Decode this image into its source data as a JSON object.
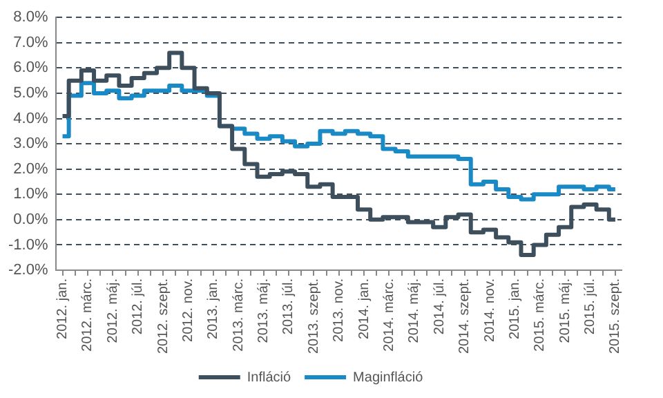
{
  "chart_data": {
    "type": "step",
    "categories": [
      "2012. jan.",
      null,
      "2012. márc.",
      null,
      "2012. máj.",
      null,
      "2012. júl.",
      null,
      "2012. szept.",
      null,
      "2012. nov.",
      null,
      "2013. jan.",
      null,
      "2013. márc.",
      null,
      "2013. máj.",
      null,
      "2013. júl.",
      null,
      "2013. szept.",
      null,
      "2013. nov.",
      null,
      "2014. jan.",
      null,
      "2014. márc.",
      null,
      "2014. máj.",
      null,
      "2014. júl.",
      null,
      "2014. szept.",
      null,
      "2014. nov.",
      null,
      "2015. jan.",
      null,
      "2015. márc.",
      null,
      "2015. máj.",
      null,
      "2015. júl.",
      null,
      "2015. szept."
    ],
    "series": [
      {
        "name": "Infláció",
        "color": "#3d4f5c",
        "values": [
          4.1,
          5.5,
          5.9,
          5.5,
          5.7,
          5.3,
          5.6,
          5.8,
          6.0,
          6.6,
          6.0,
          5.2,
          5.0,
          3.7,
          2.8,
          2.2,
          1.7,
          1.8,
          1.9,
          1.8,
          1.3,
          1.4,
          0.9,
          0.9,
          0.4,
          0.0,
          0.1,
          0.1,
          -0.1,
          -0.1,
          -0.3,
          0.1,
          0.2,
          -0.5,
          -0.4,
          -0.7,
          -0.9,
          -1.4,
          -1.0,
          -0.6,
          -0.3,
          0.5,
          0.6,
          0.4,
          0.0
        ]
      },
      {
        "name": "Maginfláció",
        "color": "#1a8ac6",
        "values": [
          3.3,
          4.9,
          5.4,
          5.0,
          5.1,
          4.8,
          4.9,
          5.1,
          5.1,
          5.3,
          5.1,
          5.1,
          4.9,
          3.7,
          3.6,
          3.4,
          3.2,
          3.3,
          3.1,
          2.9,
          3.0,
          3.5,
          3.4,
          3.5,
          3.4,
          3.3,
          2.8,
          2.7,
          2.5,
          2.5,
          2.5,
          2.5,
          2.4,
          1.4,
          1.5,
          1.2,
          0.9,
          0.8,
          1.0,
          1.0,
          1.3,
          1.3,
          1.2,
          1.3,
          1.2
        ]
      }
    ],
    "ylim": [
      -2,
      8
    ],
    "yticks": [
      {
        "value": -2,
        "label": "-2.0%"
      },
      {
        "value": -1,
        "label": "-1.0%"
      },
      {
        "value": 0,
        "label": "0.0%"
      },
      {
        "value": 1,
        "label": "1.0%"
      },
      {
        "value": 2,
        "label": "2.0%"
      },
      {
        "value": 3,
        "label": "3.0%"
      },
      {
        "value": 4,
        "label": "4.0%"
      },
      {
        "value": 5,
        "label": "5.0%"
      },
      {
        "value": 6,
        "label": "6.0%"
      },
      {
        "value": 7,
        "label": "7.0%"
      },
      {
        "value": 8,
        "label": "8.0%"
      }
    ],
    "grid": "y",
    "legend": "bottom",
    "line_style": "solid",
    "marker": "none"
  }
}
